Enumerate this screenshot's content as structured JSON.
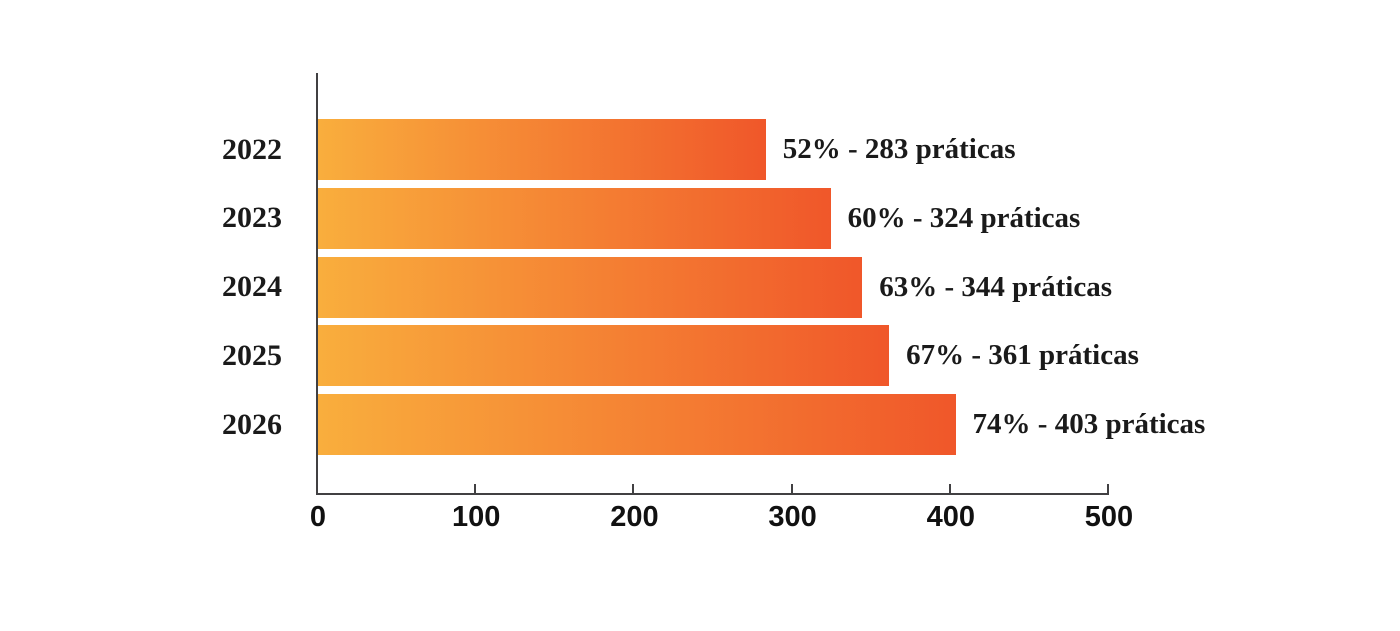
{
  "chart_data": {
    "type": "bar",
    "orientation": "horizontal",
    "title": "",
    "xlabel": "",
    "ylabel": "",
    "categories": [
      "2022",
      "2023",
      "2024",
      "2025",
      "2026"
    ],
    "values": [
      283,
      324,
      344,
      361,
      403
    ],
    "percentages": [
      52,
      60,
      63,
      67,
      74
    ],
    "bar_labels": [
      "52% - 283 práticas",
      "60% - 324 práticas",
      "63% - 344 práticas",
      "67% - 361 práticas",
      "74% - 403 práticas"
    ],
    "xlim": [
      0,
      500
    ],
    "x_ticks": [
      "0",
      "100",
      "200",
      "300",
      "400",
      "500"
    ],
    "x_tick_values": [
      0,
      100,
      200,
      300,
      400,
      500
    ],
    "grid": false,
    "legend": false,
    "colors": {
      "bar_gradient_start": "#F9AE3D",
      "bar_gradient_end": "#F0572A",
      "axis": "#414042",
      "text": "#1A1A1A"
    }
  }
}
